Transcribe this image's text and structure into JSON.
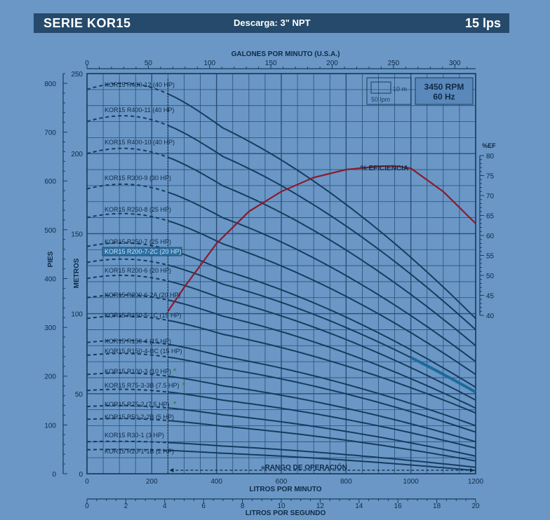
{
  "header": {
    "series": "SERIE KOR15",
    "discharge": "Descarga: 3\" NPT",
    "flow": "15 lps"
  },
  "legend_box": {
    "label_10m": "10 m",
    "label_50lpm": "50 lpm"
  },
  "rpm_box": {
    "rpm": "3450 RPM",
    "hz": "60 Hz"
  },
  "chart_data": {
    "type": "line",
    "x_axis_primary": {
      "label": "LITROS POR MINUTO",
      "range": [
        0,
        1200
      ],
      "ticks": [
        "0",
        "200",
        "400",
        "600",
        "800",
        "1000",
        "1200"
      ]
    },
    "x_axis_secondary": {
      "label": "LITROS POR SEGUNDO",
      "range": [
        0,
        20
      ],
      "ticks": [
        "0",
        "2",
        "4",
        "6",
        "8",
        "10",
        "12",
        "14",
        "16",
        "18",
        "20"
      ]
    },
    "x_axis_top": {
      "label": "GALONES POR MINUTO (U.S.A.)",
      "range": [
        0,
        317
      ],
      "ticks": [
        "0",
        "50",
        "100",
        "150",
        "200",
        "250",
        "300"
      ]
    },
    "y_axis_primary": {
      "label": "METROS",
      "range": [
        0,
        250
      ],
      "ticks": [
        "0",
        "50",
        "100",
        "150",
        "200",
        "250"
      ]
    },
    "y_axis_secondary": {
      "label": "PIES",
      "range": [
        0,
        820
      ],
      "ticks": [
        "0",
        "100",
        "200",
        "300",
        "400",
        "500",
        "600",
        "700",
        "800"
      ]
    },
    "y_axis_efficiency": {
      "label": "%EF",
      "range": [
        40,
        80
      ],
      "ticks": [
        "40",
        "45",
        "50",
        "55",
        "60",
        "65",
        "70",
        "75",
        "80"
      ]
    },
    "operating_range_label": "»RANGO DE OPERACIÓN",
    "operating_range_start_lpm": 250,
    "efficiency": {
      "name": "% EFICIENCIA",
      "color": "#8b1a2e",
      "x": [
        250,
        300,
        400,
        500,
        600,
        700,
        800,
        900,
        950,
        1000,
        1100,
        1200
      ],
      "y": [
        41,
        47,
        58,
        66,
        71,
        74.5,
        76.5,
        77.3,
        77.4,
        76.8,
        71,
        63
      ]
    },
    "grid": true,
    "series": [
      {
        "name": "KOR15 R400-12 (40 HP)",
        "y0": 240,
        "y_end": 97,
        "x_end": 1200
      },
      {
        "name": "KOR15 R400-11 (40 HP)",
        "y0": 220,
        "y_end": 90,
        "x_end": 1200
      },
      {
        "name": "KOR15 R400-10 (40 HP)",
        "y0": 200,
        "y_end": 80,
        "x_end": 1200
      },
      {
        "name": "KOR15 R300-9 (30 HP)",
        "y0": 178,
        "y_end": 70,
        "x_end": 1200
      },
      {
        "name": "KOR15 R250-8 (25 HP)",
        "y0": 160,
        "y_end": 62,
        "x_end": 1200
      },
      {
        "name": "KOR15 R250-7 (25 HP)",
        "y0": 142,
        "y_end": 54,
        "x_end": 1200
      },
      {
        "name": "KOR15 R200-7-2C (20 HP)",
        "y0": 132,
        "y_end": 51,
        "x_end": 1200,
        "highlight": true,
        "color": "#1b6a9a"
      },
      {
        "name": "KOR15 R200-6 (20 HP)",
        "y0": 122,
        "y_end": 46,
        "x_end": 1200
      },
      {
        "name": "KOR15 R200-6-2A (20 HP)",
        "y0": 110,
        "y_end": 41,
        "x_end": 1200
      },
      {
        "name": "KOR15 R150-5-1C (15 HP)",
        "y0": 97,
        "y_end": 38,
        "x_end": 1200
      },
      {
        "name": "KOR15 R150-4 (15 HP)",
        "y0": 82,
        "y_end": 30,
        "x_end": 1200
      },
      {
        "name": "KOR15 R150-4-BC (15 HP)",
        "y0": 74,
        "y_end": 26,
        "x_end": 1200
      },
      {
        "name": "KOR15 R100-3 (10 HP)",
        "y0": 62,
        "y_end": 20,
        "x_end": 1200,
        "marker": "*"
      },
      {
        "name": "KOR15 R75-3-3B (7.5 HP)",
        "y0": 52,
        "y_end": 16,
        "x_end": 1200,
        "marker": "*"
      },
      {
        "name": "KOR15 R75-2 (7.5 HP)",
        "y0": 42,
        "y_end": 11,
        "x_end": 1200,
        "marker": "*"
      },
      {
        "name": "KOR15 R50-2-2B (5 HP)",
        "y0": 34,
        "y_end": 8,
        "x_end": 1200
      },
      {
        "name": "KOR15 R30-1 (3 HP)",
        "y0": 20,
        "y_end": 4,
        "x_end": 1200
      },
      {
        "name": "KOR15 R20-1-1B (2 HP)",
        "y0": 15,
        "y_end": 2,
        "x_end": 1200
      }
    ]
  },
  "colors": {
    "background": "#6a97c6",
    "curve": "#163c5e",
    "grid": "#2b4f74",
    "highlight": "#1b6a9a",
    "efficiency": "#8b1a2e",
    "marker": "#2e8b3e"
  }
}
